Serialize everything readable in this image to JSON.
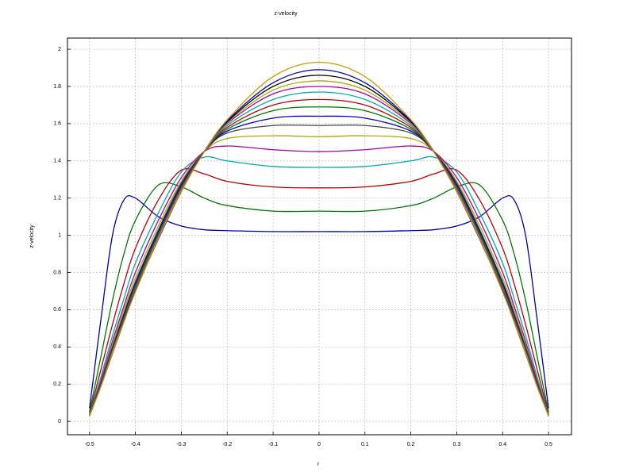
{
  "chart_data": {
    "type": "line",
    "title": "z-velocity",
    "x_label": "r",
    "y_label": "z-velocity",
    "x": [
      -0.5,
      -0.475,
      -0.45,
      -0.425,
      -0.4,
      -0.35,
      -0.3,
      -0.25,
      -0.2,
      -0.1,
      0,
      0.1,
      0.2,
      0.25,
      0.3,
      0.35,
      0.4,
      0.425,
      0.45,
      0.475,
      0.5
    ],
    "series": [
      {
        "color": "#0000aa",
        "values": [
          0.07,
          0.55,
          1.0,
          1.19,
          1.2,
          1.1,
          1.05,
          1.03,
          1.025,
          1.02,
          1.02,
          1.02,
          1.025,
          1.03,
          1.05,
          1.1,
          1.2,
          1.19,
          1.0,
          0.55,
          0.07
        ]
      },
      {
        "color": "#007700",
        "values": [
          0.05,
          0.35,
          0.65,
          0.9,
          1.08,
          1.27,
          1.26,
          1.2,
          1.16,
          1.13,
          1.13,
          1.13,
          1.16,
          1.2,
          1.26,
          1.27,
          1.08,
          0.9,
          0.65,
          0.35,
          0.05
        ]
      },
      {
        "color": "#bb0000",
        "values": [
          0.04,
          0.28,
          0.52,
          0.74,
          0.93,
          1.19,
          1.35,
          1.33,
          1.29,
          1.26,
          1.255,
          1.26,
          1.29,
          1.33,
          1.35,
          1.19,
          0.93,
          0.74,
          0.52,
          0.28,
          0.04
        ]
      },
      {
        "color": "#00aaaa",
        "values": [
          0.035,
          0.24,
          0.46,
          0.66,
          0.85,
          1.12,
          1.34,
          1.42,
          1.4,
          1.37,
          1.365,
          1.37,
          1.4,
          1.42,
          1.34,
          1.12,
          0.85,
          0.66,
          0.46,
          0.24,
          0.035
        ]
      },
      {
        "color": "#aa00aa",
        "values": [
          0.03,
          0.22,
          0.43,
          0.62,
          0.8,
          1.08,
          1.31,
          1.45,
          1.48,
          1.46,
          1.45,
          1.46,
          1.48,
          1.45,
          1.31,
          1.08,
          0.8,
          0.62,
          0.43,
          0.22,
          0.03
        ]
      },
      {
        "color": "#aaaa00",
        "values": [
          0.03,
          0.21,
          0.41,
          0.6,
          0.77,
          1.05,
          1.29,
          1.45,
          1.52,
          1.535,
          1.53,
          1.535,
          1.52,
          1.45,
          1.29,
          1.05,
          0.77,
          0.6,
          0.41,
          0.21,
          0.03
        ]
      },
      {
        "color": "#444444",
        "values": [
          0.03,
          0.21,
          0.4,
          0.58,
          0.75,
          1.03,
          1.28,
          1.45,
          1.55,
          1.59,
          1.59,
          1.59,
          1.55,
          1.45,
          1.28,
          1.03,
          0.75,
          0.58,
          0.4,
          0.21,
          0.03
        ]
      },
      {
        "color": "#0000bb",
        "values": [
          0.03,
          0.2,
          0.39,
          0.57,
          0.74,
          1.02,
          1.27,
          1.45,
          1.56,
          1.63,
          1.64,
          1.63,
          1.56,
          1.45,
          1.27,
          1.02,
          0.74,
          0.57,
          0.39,
          0.2,
          0.03
        ]
      },
      {
        "color": "#007700",
        "values": [
          0.03,
          0.2,
          0.385,
          0.56,
          0.73,
          1.01,
          1.26,
          1.45,
          1.57,
          1.67,
          1.69,
          1.67,
          1.57,
          1.45,
          1.26,
          1.01,
          0.73,
          0.56,
          0.385,
          0.2,
          0.03
        ]
      },
      {
        "color": "#bb0000",
        "values": [
          0.03,
          0.2,
          0.38,
          0.555,
          0.72,
          1.0,
          1.255,
          1.45,
          1.58,
          1.7,
          1.73,
          1.7,
          1.58,
          1.45,
          1.255,
          1.0,
          0.72,
          0.555,
          0.38,
          0.2,
          0.03
        ]
      },
      {
        "color": "#00aaaa",
        "values": [
          0.03,
          0.195,
          0.375,
          0.55,
          0.715,
          0.995,
          1.25,
          1.45,
          1.59,
          1.73,
          1.77,
          1.73,
          1.59,
          1.45,
          1.25,
          0.995,
          0.715,
          0.55,
          0.375,
          0.195,
          0.03
        ]
      },
      {
        "color": "#aa00aa",
        "values": [
          0.03,
          0.195,
          0.37,
          0.545,
          0.71,
          0.99,
          1.245,
          1.45,
          1.6,
          1.76,
          1.8,
          1.76,
          1.6,
          1.45,
          1.245,
          0.99,
          0.71,
          0.545,
          0.37,
          0.195,
          0.03
        ]
      },
      {
        "color": "#aaaa00",
        "values": [
          0.03,
          0.19,
          0.37,
          0.54,
          0.705,
          0.985,
          1.24,
          1.45,
          1.605,
          1.78,
          1.83,
          1.78,
          1.605,
          1.45,
          1.24,
          0.985,
          0.705,
          0.54,
          0.37,
          0.19,
          0.03
        ]
      },
      {
        "color": "#000000",
        "values": [
          0.03,
          0.19,
          0.365,
          0.54,
          0.7,
          0.98,
          1.235,
          1.45,
          1.61,
          1.8,
          1.86,
          1.8,
          1.61,
          1.45,
          1.235,
          0.98,
          0.7,
          0.54,
          0.365,
          0.19,
          0.03
        ]
      },
      {
        "color": "#0000bb",
        "values": [
          0.03,
          0.19,
          0.365,
          0.535,
          0.7,
          0.98,
          1.235,
          1.45,
          1.615,
          1.82,
          1.89,
          1.82,
          1.615,
          1.45,
          1.235,
          0.98,
          0.7,
          0.535,
          0.365,
          0.19,
          0.03
        ]
      },
      {
        "color": "#cc9900",
        "values": [
          0.03,
          0.188,
          0.367,
          0.536,
          0.695,
          0.984,
          1.235,
          1.448,
          1.621,
          1.853,
          1.93,
          1.853,
          1.621,
          1.448,
          1.235,
          0.984,
          0.695,
          0.536,
          0.367,
          0.188,
          0.03
        ]
      }
    ],
    "xlim": [
      -0.548,
      0.55
    ],
    "ylim": [
      -0.072,
      2.06
    ],
    "xticks": [
      -0.5,
      -0.4,
      -0.3,
      -0.2,
      -0.1,
      0,
      0.1,
      0.2,
      0.3,
      0.4,
      0.5
    ],
    "yticks": [
      0,
      0.2,
      0.4,
      0.6,
      0.8,
      1,
      1.2,
      1.4,
      1.6,
      1.8,
      2
    ],
    "grid": true
  }
}
